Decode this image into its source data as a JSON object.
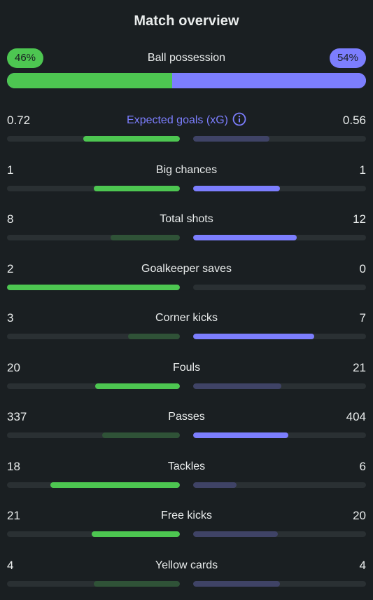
{
  "title": "Match overview",
  "colors": {
    "home": "#4dc651",
    "home_dim": "#2f5237",
    "away": "#7c7efe",
    "away_dim": "#3f4366"
  },
  "possession": {
    "label": "Ball possession",
    "home": "46%",
    "away": "54%",
    "home_value": 46,
    "away_value": 54
  },
  "stats": [
    {
      "name": "Expected goals (xG)",
      "home": "0.72",
      "away": "0.56",
      "home_frac": 0.56,
      "away_frac": 0.44,
      "winner": "home",
      "accent": true,
      "icon": "info-icon"
    },
    {
      "name": "Big chances",
      "home": "1",
      "away": "1",
      "home_frac": 0.5,
      "away_frac": 0.5,
      "winner": "both"
    },
    {
      "name": "Total shots",
      "home": "8",
      "away": "12",
      "home_frac": 0.4,
      "away_frac": 0.6,
      "winner": "away"
    },
    {
      "name": "Goalkeeper saves",
      "home": "2",
      "away": "0",
      "home_frac": 1.0,
      "away_frac": 0.0,
      "winner": "home"
    },
    {
      "name": "Corner kicks",
      "home": "3",
      "away": "7",
      "home_frac": 0.3,
      "away_frac": 0.7,
      "winner": "away"
    },
    {
      "name": "Fouls",
      "home": "20",
      "away": "21",
      "home_frac": 0.49,
      "away_frac": 0.51,
      "winner": "home"
    },
    {
      "name": "Passes",
      "home": "337",
      "away": "404",
      "home_frac": 0.45,
      "away_frac": 0.55,
      "winner": "away"
    },
    {
      "name": "Tackles",
      "home": "18",
      "away": "6",
      "home_frac": 0.75,
      "away_frac": 0.25,
      "winner": "home"
    },
    {
      "name": "Free kicks",
      "home": "21",
      "away": "20",
      "home_frac": 0.51,
      "away_frac": 0.49,
      "winner": "home"
    },
    {
      "name": "Yellow cards",
      "home": "4",
      "away": "4",
      "home_frac": 0.5,
      "away_frac": 0.5,
      "winner": "none"
    }
  ]
}
